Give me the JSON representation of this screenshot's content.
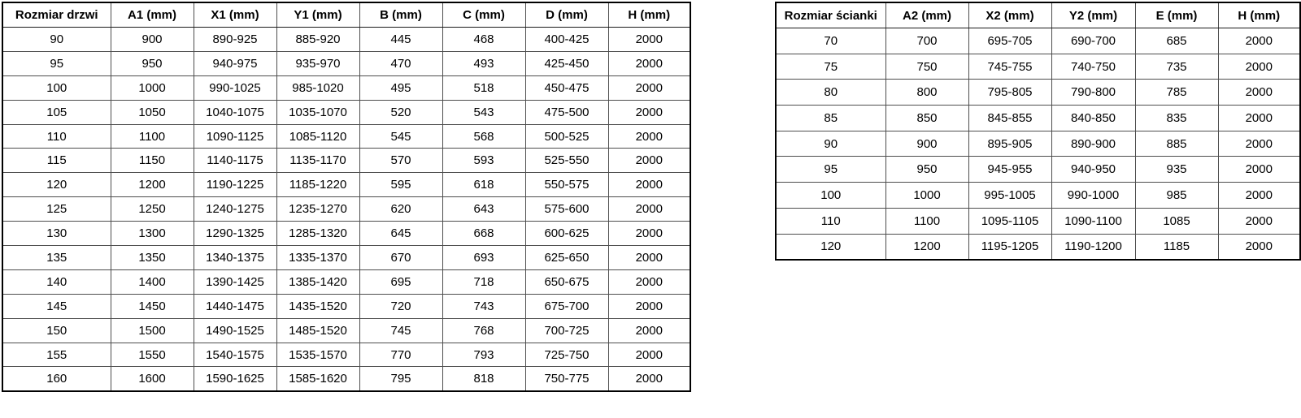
{
  "page": {
    "background_color": "#ffffff",
    "text_color": "#000000",
    "outer_border_color": "#000000",
    "grid_line_color": "#4d4d4d"
  },
  "tables": [
    {
      "name": "door-sizes",
      "headers": [
        "Rozmiar drzwi",
        "A1 (mm)",
        "X1 (mm)",
        "Y1 (mm)",
        "B (mm)",
        "C (mm)",
        "D (mm)",
        "H (mm)"
      ],
      "rows": [
        [
          "90",
          "900",
          "890-925",
          "885-920",
          "445",
          "468",
          "400-425",
          "2000"
        ],
        [
          "95",
          "950",
          "940-975",
          "935-970",
          "470",
          "493",
          "425-450",
          "2000"
        ],
        [
          "100",
          "1000",
          "990-1025",
          "985-1020",
          "495",
          "518",
          "450-475",
          "2000"
        ],
        [
          "105",
          "1050",
          "1040-1075",
          "1035-1070",
          "520",
          "543",
          "475-500",
          "2000"
        ],
        [
          "110",
          "1100",
          "1090-1125",
          "1085-1120",
          "545",
          "568",
          "500-525",
          "2000"
        ],
        [
          "115",
          "1150",
          "1140-1175",
          "1135-1170",
          "570",
          "593",
          "525-550",
          "2000"
        ],
        [
          "120",
          "1200",
          "1190-1225",
          "1185-1220",
          "595",
          "618",
          "550-575",
          "2000"
        ],
        [
          "125",
          "1250",
          "1240-1275",
          "1235-1270",
          "620",
          "643",
          "575-600",
          "2000"
        ],
        [
          "130",
          "1300",
          "1290-1325",
          "1285-1320",
          "645",
          "668",
          "600-625",
          "2000"
        ],
        [
          "135",
          "1350",
          "1340-1375",
          "1335-1370",
          "670",
          "693",
          "625-650",
          "2000"
        ],
        [
          "140",
          "1400",
          "1390-1425",
          "1385-1420",
          "695",
          "718",
          "650-675",
          "2000"
        ],
        [
          "145",
          "1450",
          "1440-1475",
          "1435-1520",
          "720",
          "743",
          "675-700",
          "2000"
        ],
        [
          "150",
          "1500",
          "1490-1525",
          "1485-1520",
          "745",
          "768",
          "700-725",
          "2000"
        ],
        [
          "155",
          "1550",
          "1540-1575",
          "1535-1570",
          "770",
          "793",
          "725-750",
          "2000"
        ],
        [
          "160",
          "1600",
          "1590-1625",
          "1585-1620",
          "795",
          "818",
          "750-775",
          "2000"
        ]
      ]
    },
    {
      "name": "wall-sizes",
      "headers": [
        "Rozmiar ścianki",
        "A2 (mm)",
        "X2 (mm)",
        "Y2 (mm)",
        "E (mm)",
        "H (mm)"
      ],
      "rows": [
        [
          "70",
          "700",
          "695-705",
          "690-700",
          "685",
          "2000"
        ],
        [
          "75",
          "750",
          "745-755",
          "740-750",
          "735",
          "2000"
        ],
        [
          "80",
          "800",
          "795-805",
          "790-800",
          "785",
          "2000"
        ],
        [
          "85",
          "850",
          "845-855",
          "840-850",
          "835",
          "2000"
        ],
        [
          "90",
          "900",
          "895-905",
          "890-900",
          "885",
          "2000"
        ],
        [
          "95",
          "950",
          "945-955",
          "940-950",
          "935",
          "2000"
        ],
        [
          "100",
          "1000",
          "995-1005",
          "990-1000",
          "985",
          "2000"
        ],
        [
          "110",
          "1100",
          "1095-1105",
          "1090-1100",
          "1085",
          "2000"
        ],
        [
          "120",
          "1200",
          "1195-1205",
          "1190-1200",
          "1185",
          "2000"
        ]
      ]
    }
  ]
}
